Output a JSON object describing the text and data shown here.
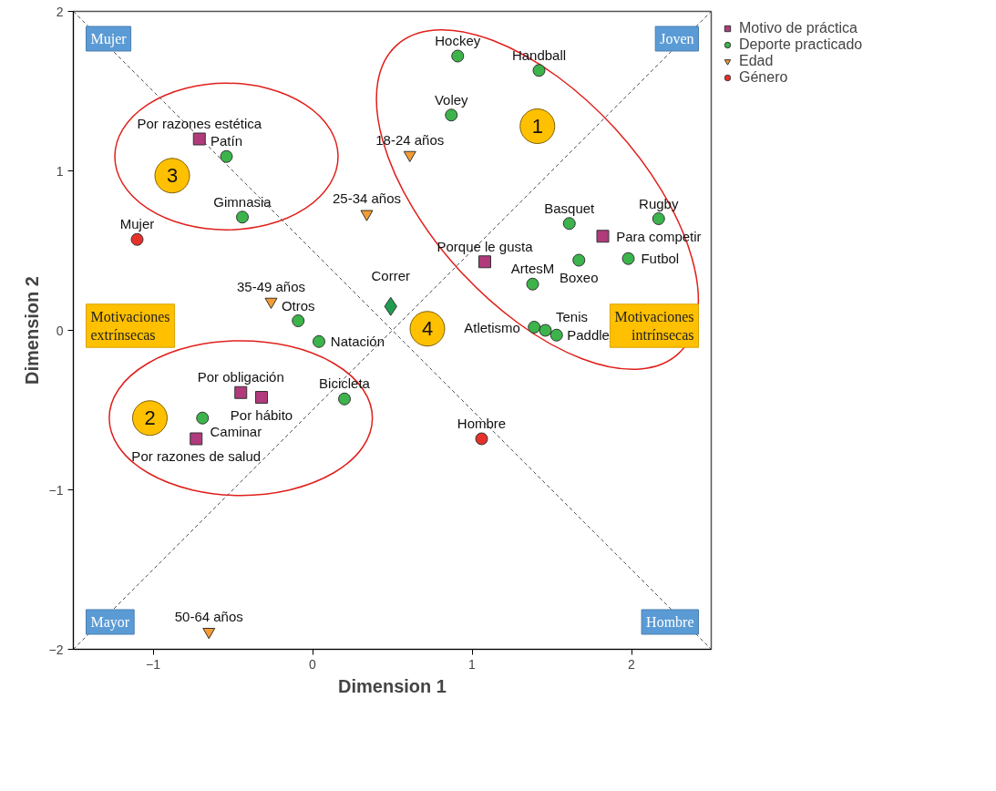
{
  "chart_data": {
    "type": "scatter",
    "xlabel": "Dimension 1",
    "ylabel": "Dimension 2",
    "xlim": [
      -1.5,
      2.5
    ],
    "ylim": [
      -2,
      2
    ],
    "xticks": [
      -1,
      0,
      1,
      2
    ],
    "yticks": [
      -2,
      -1,
      0,
      1,
      2
    ],
    "grid": false,
    "legend": "top right",
    "series": [
      {
        "name": "Motivo de práctica",
        "color": "#b03a7c",
        "marker": "square",
        "x": [
          -0.71,
          1.08,
          1.82,
          -0.45,
          -0.32,
          -0.73
        ],
        "values": [
          1.2,
          0.43,
          0.59,
          -0.39,
          -0.42,
          -0.68
        ]
      },
      {
        "name": "Deporte practicado",
        "color": "#3cb44b",
        "marker": "circle",
        "x": [
          0.91,
          1.42,
          0.87,
          -0.54,
          -0.44,
          1.61,
          2.17,
          1.98,
          1.67,
          1.38,
          1.39,
          1.46,
          1.53,
          -0.09,
          0.04,
          0.2,
          -0.69
        ],
        "values": [
          1.72,
          1.63,
          1.35,
          1.09,
          0.71,
          0.67,
          0.7,
          0.45,
          0.44,
          0.29,
          0.02,
          0.0,
          -0.03,
          0.06,
          -0.07,
          -0.43,
          -0.55
        ]
      },
      {
        "name": "Edad",
        "color": "#f39c34",
        "marker": "triangle",
        "x": [
          0.61,
          0.34,
          -0.26,
          -0.65
        ],
        "values": [
          1.1,
          0.73,
          0.18,
          -1.89
        ]
      },
      {
        "name": "Género",
        "color": "#e8302a",
        "marker": "circle",
        "x": [
          -1.1,
          1.06
        ],
        "values": [
          0.57,
          -0.68
        ]
      },
      {
        "color": "#1f9e50",
        "marker": "diamond",
        "x": [
          0.49
        ],
        "values": [
          0.15
        ]
      },
      {
        "type": "line",
        "color": "#555555",
        "line_style": "dashed",
        "x": [
          -1.5,
          2.5
        ],
        "values": [
          -2,
          2
        ]
      },
      {
        "type": "line",
        "color": "#555555",
        "line_style": "dashed",
        "x": [
          -1.5,
          2.5
        ],
        "values": [
          2,
          -2
        ]
      }
    ],
    "annotations": [
      {
        "text": "Hockey",
        "x": 0.91,
        "y": 1.72
      },
      {
        "text": "Handball",
        "x": 1.42,
        "y": 1.63
      },
      {
        "text": "Voley",
        "x": 0.87,
        "y": 1.35
      },
      {
        "text": "Por razones estética",
        "x": -0.71,
        "y": 1.2
      },
      {
        "text": "18-24 años",
        "x": 0.61,
        "y": 1.1
      },
      {
        "text": "Patín",
        "x": -0.54,
        "y": 1.09
      },
      {
        "text": "Rugby",
        "x": 2.17,
        "y": 0.7
      },
      {
        "text": "Basquet",
        "x": 1.61,
        "y": 0.67
      },
      {
        "text": "25-34 años",
        "x": 0.34,
        "y": 0.73
      },
      {
        "text": "Gimnasia",
        "x": -0.44,
        "y": 0.71
      },
      {
        "text": "Para competir",
        "x": 1.82,
        "y": 0.59
      },
      {
        "text": "Mujer",
        "x": -1.1,
        "y": 0.57
      },
      {
        "text": "Futbol",
        "x": 1.98,
        "y": 0.45
      },
      {
        "text": "Porque le gusta",
        "x": 1.08,
        "y": 0.43
      },
      {
        "text": "Boxeo",
        "x": 1.67,
        "y": 0.44
      },
      {
        "text": "ArtesM",
        "x": 1.38,
        "y": 0.29
      },
      {
        "text": "35-49 años",
        "x": -0.26,
        "y": 0.18
      },
      {
        "text": "Correr",
        "x": 0.49,
        "y": 0.15
      },
      {
        "text": "Tenis",
        "x": 1.46,
        "y": 0.0
      },
      {
        "text": "Otros",
        "x": -0.09,
        "y": 0.06
      },
      {
        "text": "Natación",
        "x": 0.04,
        "y": -0.07
      },
      {
        "text": "Atletismo",
        "x": 1.39,
        "y": 0.02
      },
      {
        "text": "Paddle",
        "x": 1.53,
        "y": -0.03
      },
      {
        "text": "Por obligación",
        "x": -0.45,
        "y": -0.39
      },
      {
        "text": "Por hábito",
        "x": -0.32,
        "y": -0.42
      },
      {
        "text": "Bicicleta",
        "x": 0.2,
        "y": -0.43
      },
      {
        "text": "Hombre",
        "x": 1.06,
        "y": -0.68
      },
      {
        "text": "Caminar",
        "x": -0.69,
        "y": -0.55
      },
      {
        "text": "Por razones de salud",
        "x": -0.73,
        "y": -0.68
      },
      {
        "text": "50-64 años",
        "x": -0.65,
        "y": -1.89
      },
      "Mujer",
      "Joven",
      "Mayor",
      "Hombre",
      "Motivaciones\nextrínsecas",
      "Motivaciones\nintrínsecas",
      {
        "text": "1",
        "x": 1.41,
        "y": 1.28
      },
      {
        "text": "3",
        "x": -0.88,
        "y": 0.97
      },
      {
        "text": "2",
        "x": -1.02,
        "y": -0.55
      },
      {
        "text": "4",
        "x": 0.72,
        "y": 0.01
      }
    ]
  }
}
